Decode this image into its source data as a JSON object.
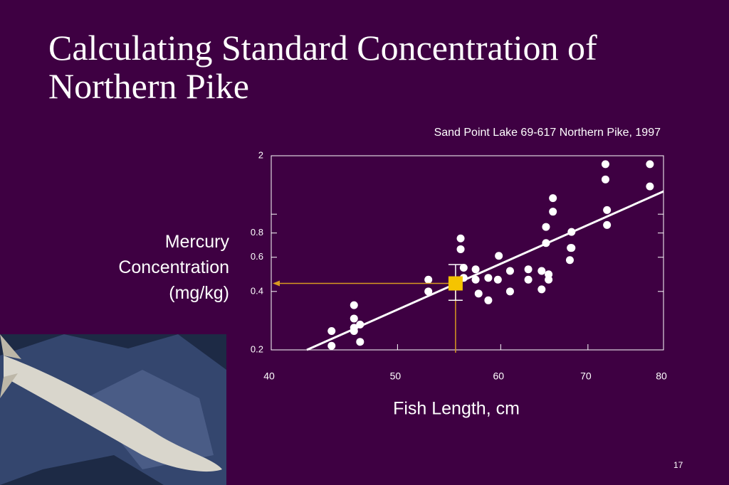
{
  "slide": {
    "title": "Calculating Standard Concentration of Northern Pike",
    "page_number": "17"
  },
  "chart_data": {
    "type": "scatter",
    "title": "Sand Point Lake 69-617 Northern Pike, 1997",
    "x_label": "Fish Length, cm",
    "y_label": "Mercury Concentration (mg/kg)",
    "x_log": true,
    "y_log": true,
    "xlim": [
      40,
      80
    ],
    "ylim": [
      0.2,
      2
    ],
    "xticks": [
      40,
      50,
      60,
      70,
      80
    ],
    "yticks": [
      0.2,
      0.4,
      0.6,
      0.8,
      {
        "value": 1,
        "label": null
      },
      2
    ],
    "series": [
      {
        "name": null,
        "color": "#ffffff",
        "x": [
          44.5,
          44.5,
          46.3,
          46.3,
          46.3,
          46.3,
          46.8,
          46.8,
          52.8,
          52.8,
          55.9,
          55.9,
          56.2,
          56.2,
          57.4,
          57.4,
          57.7,
          58.7,
          58.7,
          59.7,
          59.8,
          61.0,
          61.0,
          63.0,
          63.0,
          64.5,
          64.5,
          65.3,
          65.3,
          65.0,
          65.0,
          65.8,
          65.8,
          67.9,
          67.8,
          68.0,
          68.0,
          72.2,
          72.2,
          72.4,
          72.4,
          78.1,
          78.1
        ],
        "y": [
          0.25,
          0.21,
          0.34,
          0.29,
          0.26,
          0.25,
          0.27,
          0.22,
          0.46,
          0.4,
          0.75,
          0.66,
          0.53,
          0.47,
          0.52,
          0.46,
          0.39,
          0.47,
          0.36,
          0.46,
          0.61,
          0.51,
          0.4,
          0.52,
          0.46,
          0.51,
          0.41,
          0.49,
          0.46,
          0.71,
          0.86,
          1.03,
          1.21,
          0.67,
          0.58,
          0.81,
          0.67,
          1.81,
          1.51,
          1.05,
          0.88,
          1.81,
          1.39
        ]
      }
    ],
    "trend_line": {
      "color": "#ffffff",
      "x": [
        42.6,
        80
      ],
      "y": [
        0.2,
        1.31
      ]
    },
    "highlight": {
      "color": "#f5c400",
      "guide_color": "#d89a20",
      "x": 55.4,
      "y": 0.44,
      "low": 0.36,
      "high": 0.55
    }
  }
}
